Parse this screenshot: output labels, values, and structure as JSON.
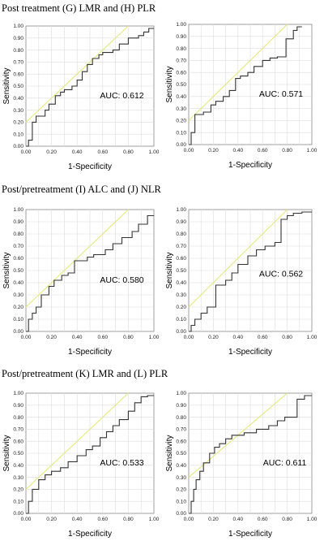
{
  "sections": [
    {
      "title": "Post treatment (G) LMR and (H) PLR"
    },
    {
      "title": "Post/pretreatment (I) ALC and (J) NLR"
    },
    {
      "title": "Post/pretreatment (K) LMR and (L) PLR"
    }
  ],
  "ticks": [
    "0.00",
    "0.10",
    "0.20",
    "0.30",
    "0.40",
    "0.50",
    "0.60",
    "0.70",
    "0.80",
    "0.90",
    "1.00"
  ],
  "colors": {
    "roc_line": "#333333",
    "reference_line": "#e6e87a",
    "grid": "#dcdcdc",
    "frame": "#888888"
  },
  "chart_data": [
    {
      "type": "line",
      "xlabel": "1-Specificity",
      "ylabel": "Sensitivity",
      "xlim": [
        0,
        1
      ],
      "ylim": [
        0,
        1
      ],
      "grid": true,
      "annotation": "AUC: 0.612",
      "reference_line": {
        "x": [
          0.0,
          0.8
        ],
        "y": [
          0.2,
          1.0
        ]
      },
      "series": [
        {
          "x": [
            0,
            0.02,
            0.02,
            0.05,
            0.05,
            0.08,
            0.08,
            0.15,
            0.15,
            0.18,
            0.18,
            0.23,
            0.23,
            0.27,
            0.27,
            0.3,
            0.3,
            0.36,
            0.36,
            0.4,
            0.4,
            0.44,
            0.44,
            0.48,
            0.48,
            0.52,
            0.52,
            0.57,
            0.57,
            0.6,
            0.6,
            0.68,
            0.68,
            0.73,
            0.73,
            0.8,
            0.8,
            0.88,
            0.88,
            0.92,
            0.92,
            0.96,
            0.96,
            1.0
          ],
          "y": [
            0,
            0,
            0.05,
            0.05,
            0.2,
            0.2,
            0.25,
            0.25,
            0.3,
            0.3,
            0.35,
            0.35,
            0.42,
            0.42,
            0.45,
            0.45,
            0.47,
            0.47,
            0.5,
            0.5,
            0.55,
            0.55,
            0.62,
            0.62,
            0.68,
            0.68,
            0.73,
            0.73,
            0.76,
            0.76,
            0.78,
            0.78,
            0.8,
            0.8,
            0.85,
            0.85,
            0.9,
            0.9,
            0.92,
            0.92,
            0.95,
            0.95,
            0.98,
            0.98
          ]
        }
      ]
    },
    {
      "type": "line",
      "xlabel": "1-Specificity",
      "ylabel": "Sensitivity",
      "xlim": [
        0,
        1
      ],
      "ylim": [
        0,
        1
      ],
      "grid": true,
      "annotation": "AUC: 0.571",
      "reference_line": {
        "x": [
          0.0,
          0.8
        ],
        "y": [
          0.2,
          1.0
        ]
      },
      "series": [
        {
          "x": [
            0,
            0.02,
            0.02,
            0.05,
            0.05,
            0.12,
            0.12,
            0.18,
            0.18,
            0.22,
            0.22,
            0.28,
            0.28,
            0.33,
            0.33,
            0.38,
            0.38,
            0.42,
            0.42,
            0.48,
            0.48,
            0.53,
            0.53,
            0.6,
            0.6,
            0.66,
            0.66,
            0.72,
            0.72,
            0.79,
            0.79,
            0.85,
            0.85,
            0.88,
            0.88,
            0.92
          ],
          "y": [
            0,
            0,
            0.1,
            0.1,
            0.25,
            0.25,
            0.27,
            0.27,
            0.33,
            0.33,
            0.36,
            0.36,
            0.4,
            0.4,
            0.45,
            0.45,
            0.55,
            0.55,
            0.57,
            0.57,
            0.6,
            0.6,
            0.65,
            0.65,
            0.7,
            0.7,
            0.72,
            0.72,
            0.73,
            0.73,
            0.88,
            0.88,
            0.95,
            0.95,
            0.98,
            0.98
          ]
        }
      ]
    },
    {
      "type": "line",
      "xlabel": "1-Specificity",
      "ylabel": "Sensitivity",
      "xlim": [
        0,
        1
      ],
      "ylim": [
        0,
        1
      ],
      "grid": true,
      "annotation": "AUC: 0.580",
      "reference_line": {
        "x": [
          0.0,
          0.8
        ],
        "y": [
          0.2,
          1.0
        ]
      },
      "series": [
        {
          "x": [
            0,
            0.02,
            0.02,
            0.05,
            0.05,
            0.08,
            0.08,
            0.12,
            0.12,
            0.18,
            0.18,
            0.22,
            0.22,
            0.28,
            0.28,
            0.33,
            0.33,
            0.38,
            0.38,
            0.48,
            0.48,
            0.53,
            0.53,
            0.62,
            0.62,
            0.68,
            0.68,
            0.75,
            0.75,
            0.83,
            0.83,
            0.88,
            0.88,
            0.95,
            0.95,
            1.0
          ],
          "y": [
            0,
            0,
            0.1,
            0.1,
            0.15,
            0.15,
            0.2,
            0.2,
            0.3,
            0.3,
            0.37,
            0.37,
            0.42,
            0.42,
            0.46,
            0.46,
            0.48,
            0.48,
            0.58,
            0.58,
            0.61,
            0.61,
            0.63,
            0.63,
            0.67,
            0.67,
            0.72,
            0.72,
            0.77,
            0.77,
            0.82,
            0.82,
            0.88,
            0.88,
            0.95,
            0.95
          ]
        }
      ]
    },
    {
      "type": "line",
      "xlabel": "1-Specificity",
      "ylabel": "Sensitivity",
      "xlim": [
        0,
        1
      ],
      "ylim": [
        0,
        1
      ],
      "grid": true,
      "annotation": "AUC: 0.562",
      "reference_line": {
        "x": [
          0.0,
          0.8
        ],
        "y": [
          0.2,
          1.0
        ]
      },
      "series": [
        {
          "x": [
            0,
            0.02,
            0.02,
            0.05,
            0.05,
            0.1,
            0.1,
            0.15,
            0.15,
            0.22,
            0.22,
            0.3,
            0.3,
            0.35,
            0.35,
            0.4,
            0.4,
            0.48,
            0.48,
            0.55,
            0.55,
            0.62,
            0.62,
            0.7,
            0.7,
            0.75,
            0.75,
            0.8,
            0.8,
            0.85,
            0.85,
            0.92,
            0.92,
            1.0
          ],
          "y": [
            0,
            0,
            0.05,
            0.05,
            0.1,
            0.1,
            0.15,
            0.15,
            0.2,
            0.2,
            0.38,
            0.38,
            0.42,
            0.42,
            0.48,
            0.48,
            0.55,
            0.55,
            0.62,
            0.62,
            0.67,
            0.67,
            0.7,
            0.7,
            0.73,
            0.73,
            0.92,
            0.92,
            0.95,
            0.95,
            0.97,
            0.97,
            0.98,
            0.98
          ]
        }
      ]
    },
    {
      "type": "line",
      "xlabel": "1-Specificity",
      "ylabel": "Sensitivity",
      "xlim": [
        0,
        1
      ],
      "ylim": [
        0,
        1
      ],
      "grid": true,
      "annotation": "AUC: 0.533",
      "reference_line": {
        "x": [
          0.0,
          0.8
        ],
        "y": [
          0.2,
          1.0
        ]
      },
      "series": [
        {
          "x": [
            0,
            0.02,
            0.02,
            0.05,
            0.05,
            0.1,
            0.1,
            0.15,
            0.15,
            0.2,
            0.2,
            0.27,
            0.27,
            0.33,
            0.33,
            0.4,
            0.4,
            0.47,
            0.47,
            0.52,
            0.52,
            0.58,
            0.58,
            0.63,
            0.63,
            0.68,
            0.68,
            0.73,
            0.73,
            0.8,
            0.8,
            0.85,
            0.85,
            0.9,
            0.9,
            0.95,
            0.95,
            1.0
          ],
          "y": [
            0,
            0,
            0.1,
            0.1,
            0.2,
            0.2,
            0.28,
            0.28,
            0.32,
            0.32,
            0.35,
            0.35,
            0.38,
            0.38,
            0.43,
            0.43,
            0.48,
            0.48,
            0.53,
            0.53,
            0.56,
            0.56,
            0.63,
            0.63,
            0.68,
            0.68,
            0.73,
            0.73,
            0.78,
            0.78,
            0.85,
            0.85,
            0.92,
            0.92,
            0.97,
            0.97,
            0.98,
            0.98
          ]
        }
      ]
    },
    {
      "type": "line",
      "xlabel": "1-Specificity",
      "ylabel": "Sensitivity",
      "xlim": [
        0,
        1
      ],
      "ylim": [
        0,
        1
      ],
      "grid": true,
      "annotation": "AUC: 0.611",
      "reference_line": {
        "x": [
          0.0,
          0.8
        ],
        "y": [
          0.3,
          1.0
        ]
      },
      "series": [
        {
          "x": [
            0,
            0.02,
            0.02,
            0.04,
            0.04,
            0.06,
            0.06,
            0.09,
            0.09,
            0.12,
            0.12,
            0.17,
            0.17,
            0.21,
            0.21,
            0.25,
            0.25,
            0.3,
            0.3,
            0.35,
            0.35,
            0.45,
            0.45,
            0.55,
            0.55,
            0.65,
            0.65,
            0.72,
            0.72,
            0.78,
            0.78,
            0.88,
            0.88,
            0.94,
            0.94,
            1.0
          ],
          "y": [
            0,
            0,
            0.1,
            0.1,
            0.2,
            0.2,
            0.28,
            0.28,
            0.35,
            0.35,
            0.42,
            0.42,
            0.5,
            0.5,
            0.55,
            0.55,
            0.58,
            0.58,
            0.62,
            0.62,
            0.65,
            0.65,
            0.67,
            0.67,
            0.7,
            0.7,
            0.73,
            0.73,
            0.77,
            0.77,
            0.8,
            0.8,
            0.95,
            0.95,
            0.98,
            0.98
          ]
        }
      ]
    }
  ]
}
